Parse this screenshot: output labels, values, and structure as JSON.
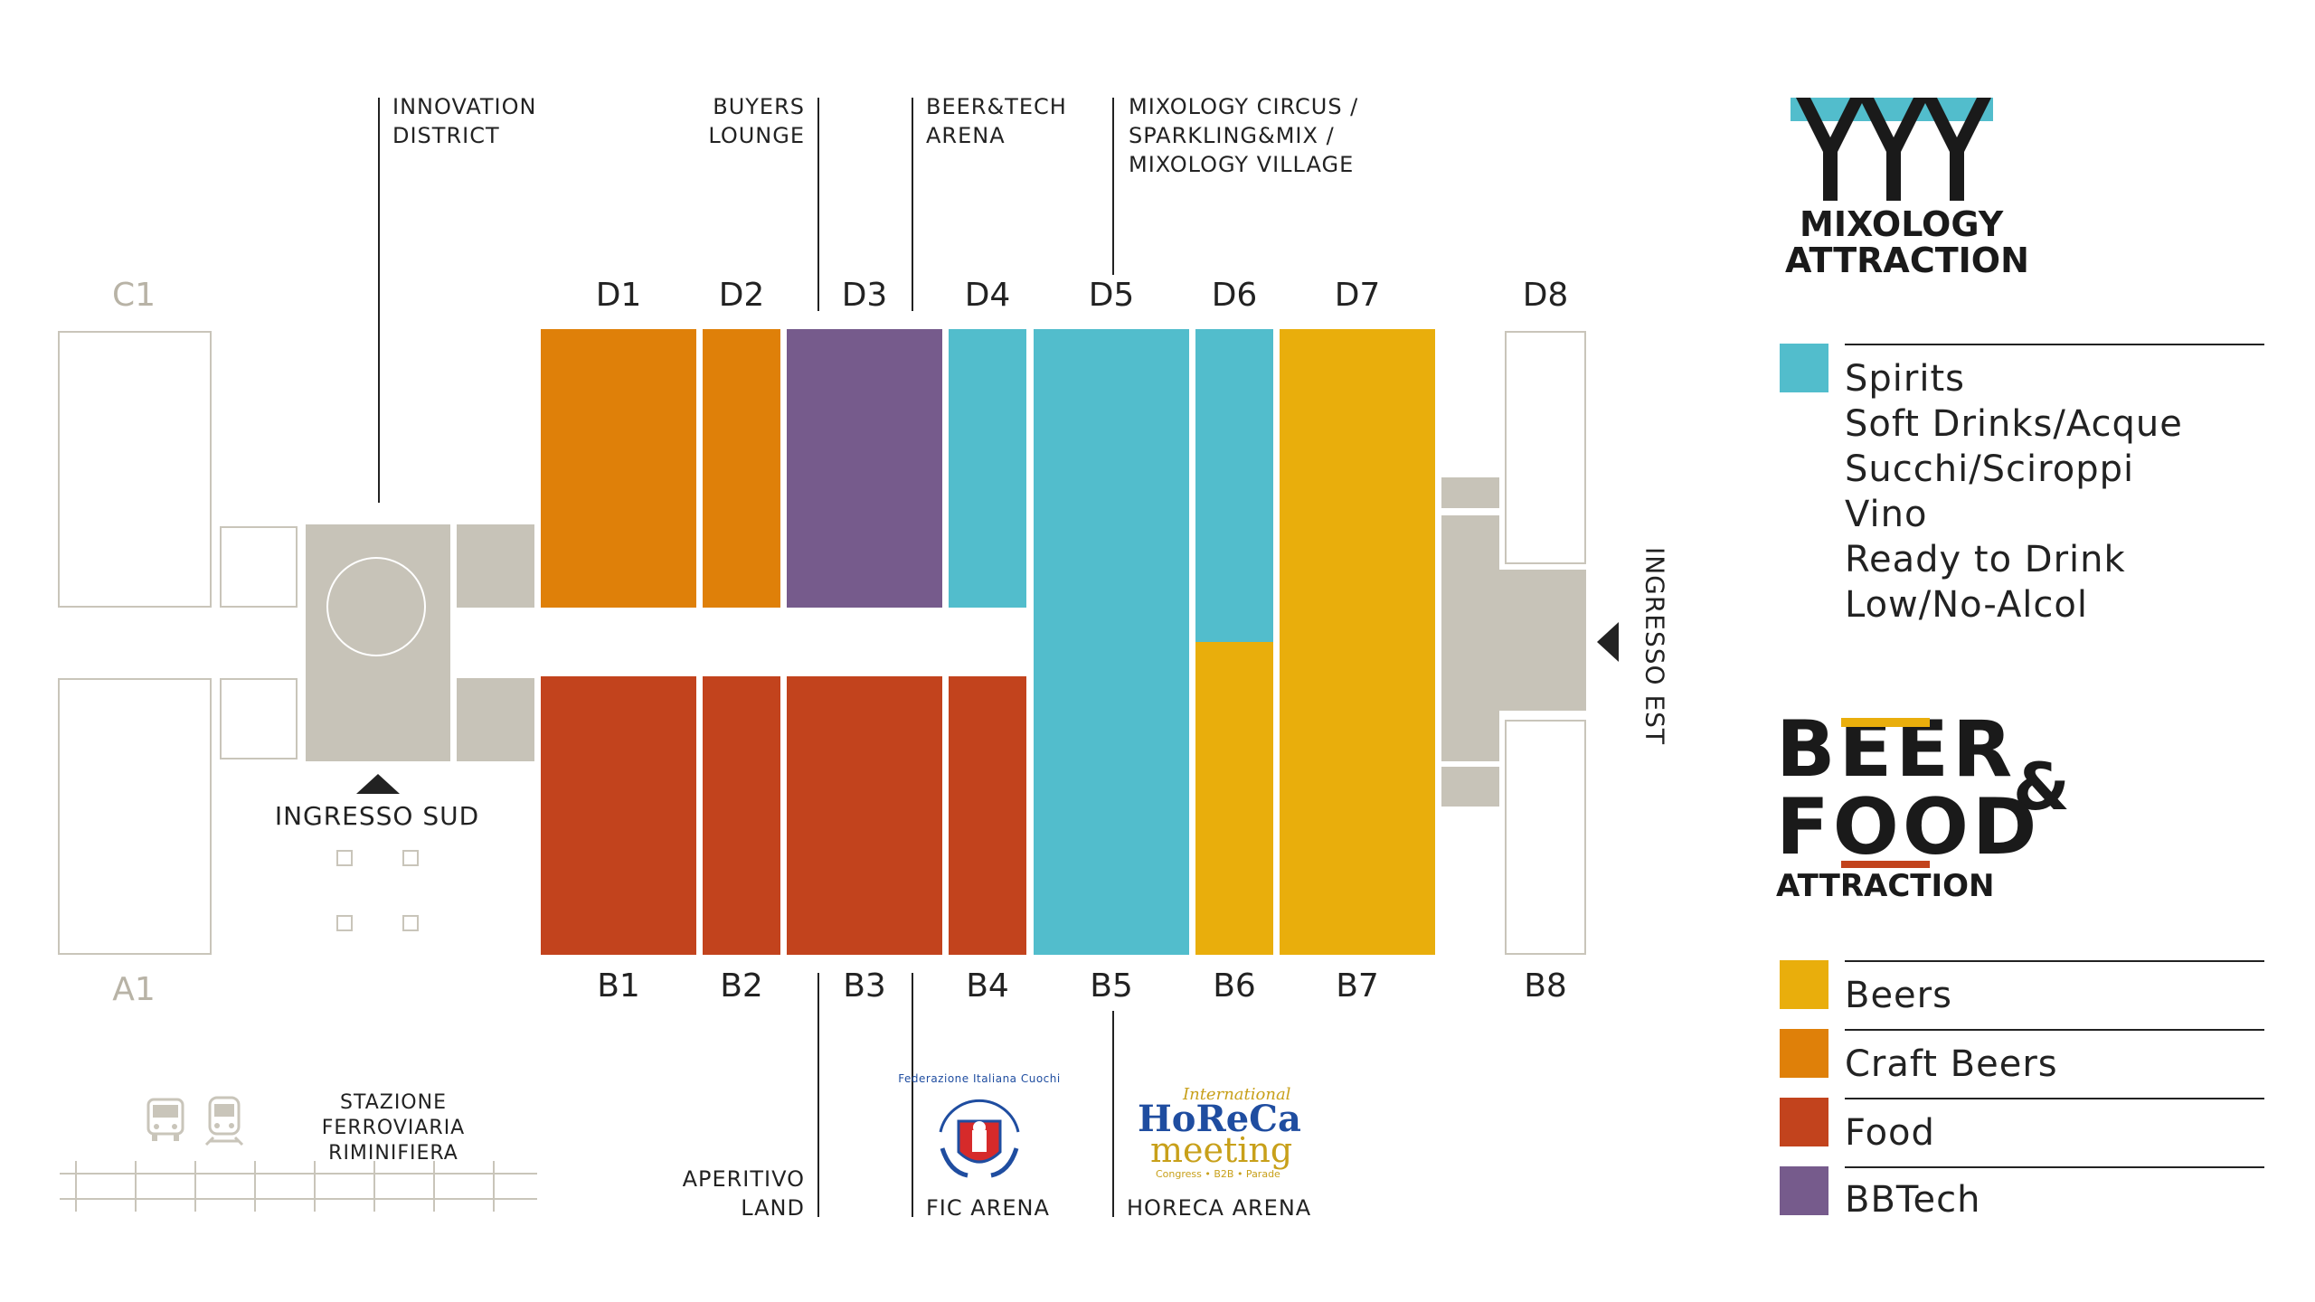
{
  "colors": {
    "spirits": "#52bdcc",
    "beers": "#e9ae0c",
    "craft_beers": "#df8009",
    "food": "#c2431d",
    "bbtech": "#765b8c",
    "service": "#c7c3b8",
    "outline": "#c9c5ba"
  },
  "halls_top": [
    "D1",
    "D2",
    "D3",
    "D4",
    "D5",
    "D6",
    "D7",
    "D8"
  ],
  "halls_bottom": [
    "B1",
    "B2",
    "B3",
    "B4",
    "B5",
    "B6",
    "B7",
    "B8"
  ],
  "halls_side": {
    "c1": "C1",
    "a1": "A1"
  },
  "callouts": {
    "innovation": [
      "INNOVATION",
      "DISTRICT"
    ],
    "buyers": [
      "BUYERS",
      "LOUNGE"
    ],
    "beertech": [
      "BEER&TECH",
      "ARENA"
    ],
    "mixology": [
      "MIXOLOGY CIRCUS /",
      "SPARKLING&MIX /",
      "MIXOLOGY VILLAGE"
    ],
    "aperitivo": [
      "APERITIVO",
      "LAND"
    ],
    "fic": "FIC ARENA",
    "horeca": "HORECA ARENA",
    "stazione": [
      "STAZIONE FERROVIARIA",
      "RIMINIFIERA"
    ]
  },
  "entrances": {
    "sud": "INGRESSO SUD",
    "est": "INGRESSO EST"
  },
  "logos": {
    "mixology_line1": "MIXOLOGY",
    "mixology_line2": "ATTRACTION",
    "beerfood_beer": "BEER",
    "beerfood_amp": "&",
    "beerfood_food": "FOOD",
    "beerfood_attraction": "ATTRACTION",
    "fic_text": "Federazione Italiana Cuochi",
    "horeca_international": "International",
    "horeca_line1": "HoReCa",
    "horeca_line2": "meeting",
    "horeca_sub": "Congress • B2B • Parade"
  },
  "legend_mixology": {
    "swatch": "spirits-icon",
    "items": [
      "Spirits",
      "Soft Drinks/Acque",
      "Succhi/Sciroppi",
      "Vino",
      "Ready to Drink",
      "Low/No-Alcol"
    ]
  },
  "legend_beerfood": [
    {
      "label": "Beers",
      "color": "#e9ae0c"
    },
    {
      "label": "Craft Beers",
      "color": "#df8009"
    },
    {
      "label": "Food",
      "color": "#c2431d"
    },
    {
      "label": "BBTech",
      "color": "#765b8c"
    }
  ],
  "icons": [
    "bus-icon",
    "train-icon",
    "circle-marker-icon",
    "arrow-up-icon",
    "arrow-left-icon"
  ]
}
